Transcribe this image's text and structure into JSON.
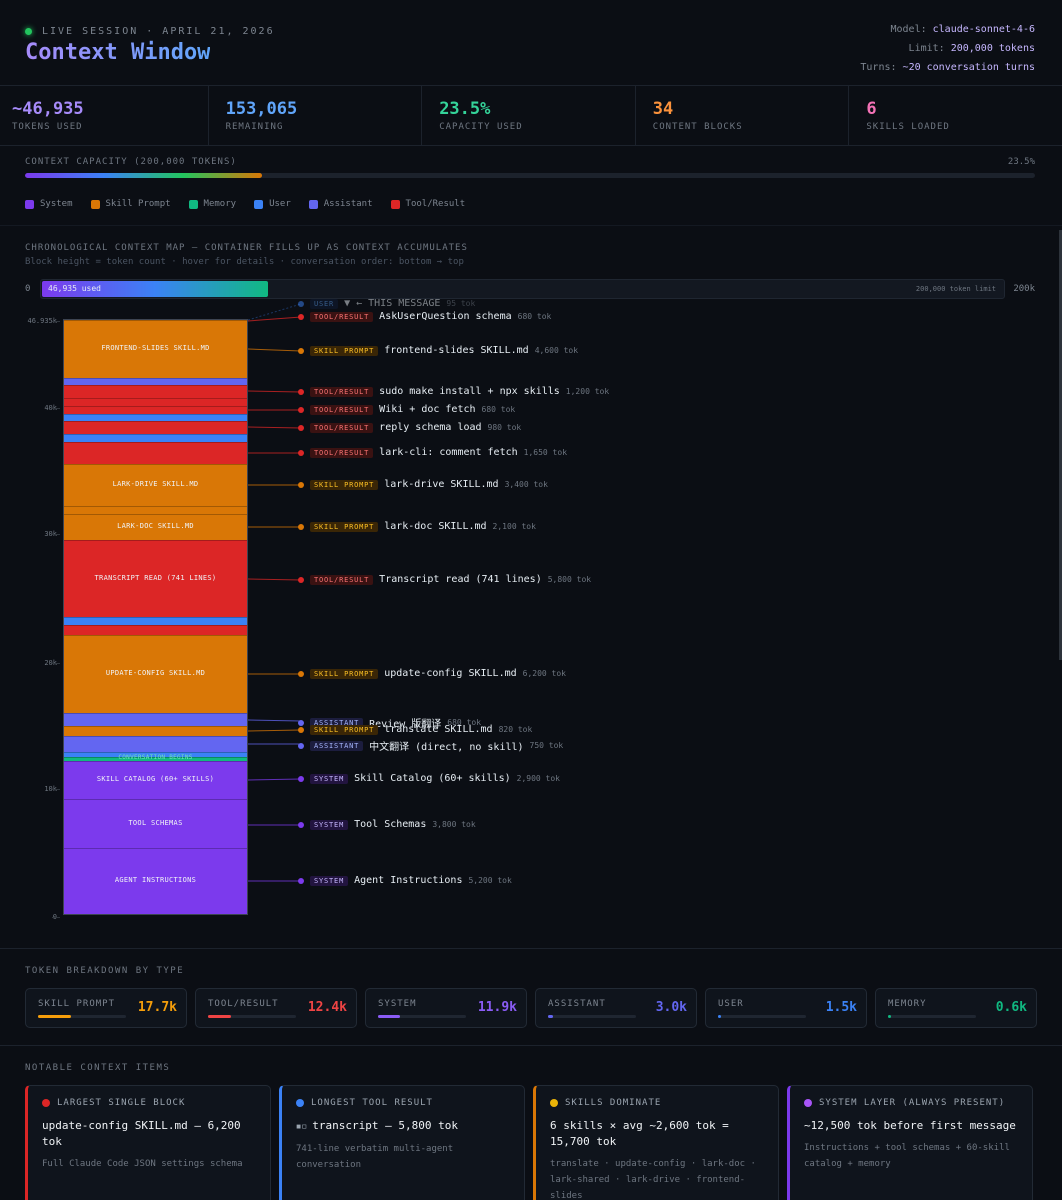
{
  "header": {
    "session": "LIVE SESSION · APRIL 21, 2026",
    "title": "Context Window",
    "model_label": "Model:",
    "model_value": "claude-sonnet-4-6",
    "limit_label": "Limit:",
    "limit_value": "200,000 tokens",
    "turns_label": "Turns:",
    "turns_value": "~20 conversation turns"
  },
  "stats": [
    {
      "value": "~46,935",
      "label": "TOKENS USED",
      "color": "#a78bfa"
    },
    {
      "value": "153,065",
      "label": "REMAINING",
      "color": "#60a5fa"
    },
    {
      "value": "23.5%",
      "label": "CAPACITY USED",
      "color": "#34d399"
    },
    {
      "value": "34",
      "label": "CONTENT BLOCKS",
      "color": "#fb923c"
    },
    {
      "value": "6",
      "label": "SKILLS LOADED",
      "color": "#f472b6"
    }
  ],
  "capacity": {
    "label": "CONTEXT CAPACITY (200,000 TOKENS)",
    "percent_text": "23.5%",
    "fraction": 0.235
  },
  "legend": [
    {
      "name": "System",
      "color": "#7c3aed"
    },
    {
      "name": "Skill Prompt",
      "color": "#d97706"
    },
    {
      "name": "Memory",
      "color": "#10b981"
    },
    {
      "name": "User",
      "color": "#3b82f6"
    },
    {
      "name": "Assistant",
      "color": "#6366f1"
    },
    {
      "name": "Tool/Result",
      "color": "#dc2626"
    }
  ],
  "map": {
    "title": "CHRONOLOGICAL CONTEXT MAP — CONTAINER FILLS UP AS CONTEXT ACCUMULATES",
    "subtitle": "Block height = token count · hover for details · conversation order: bottom → top",
    "bar_start": "0",
    "bar_used": "46,935 used",
    "bar_limit": "200,000 token limit",
    "bar_end": "200k",
    "used_fraction": 0.235,
    "axis": [
      "46.935k",
      "40k",
      "30k",
      "20k",
      "10k",
      "0"
    ],
    "conversation_begins": "CONVERSATION BEGINS",
    "block_labels": {
      "frontend": "FRONTEND-SLIDES SKILL.MD",
      "larkdrive": "LARK-DRIVE SKILL.MD",
      "larkdoc": "LARK-DOC SKILL.MD",
      "transcript": "TRANSCRIPT READ (741 LINES)",
      "updateconfig": "UPDATE-CONFIG SKILL.MD",
      "catalog": "SKILL CATALOG (60+ SKILLS)",
      "schemas": "TOOL SCHEMAS",
      "agent": "AGENT INSTRUCTIONS"
    },
    "rows": [
      {
        "badge": "USER",
        "name": "▼ ← THIS MESSAGE",
        "tok": "95 tok",
        "type": "user",
        "dim": true
      },
      {
        "badge": "TOOL/RESULT",
        "name": "AskUserQuestion schema",
        "tok": "680 tok",
        "type": "tool"
      },
      {
        "badge": "SKILL PROMPT",
        "name": "frontend-slides SKILL.md",
        "tok": "4,600 tok",
        "type": "skill"
      },
      {
        "badge": "TOOL/RESULT",
        "name": "sudo make install + npx skills",
        "tok": "1,200 tok",
        "type": "tool"
      },
      {
        "badge": "TOOL/RESULT",
        "name": "Wiki + doc fetch",
        "tok": "680 tok",
        "type": "tool"
      },
      {
        "badge": "TOOL/RESULT",
        "name": "reply schema load",
        "tok": "980 tok",
        "type": "tool"
      },
      {
        "badge": "TOOL/RESULT",
        "name": "lark-cli: comment fetch",
        "tok": "1,650 tok",
        "type": "tool"
      },
      {
        "badge": "SKILL PROMPT",
        "name": "lark-drive SKILL.md",
        "tok": "3,400 tok",
        "type": "skill"
      },
      {
        "badge": "SKILL PROMPT",
        "name": "lark-doc SKILL.md",
        "tok": "2,100 tok",
        "type": "skill"
      },
      {
        "badge": "TOOL/RESULT",
        "name": "Transcript read (741 lines)",
        "tok": "5,800 tok",
        "type": "tool"
      },
      {
        "badge": "SKILL PROMPT",
        "name": "update-config SKILL.md",
        "tok": "6,200 tok",
        "type": "skill"
      },
      {
        "badge": "ASSISTANT",
        "name": "Review 版翻译",
        "tok": "680 tok",
        "type": "assistant"
      },
      {
        "badge": "SKILL PROMPT",
        "name": "translate SKILL.md",
        "tok": "820 tok",
        "type": "skill"
      },
      {
        "badge": "ASSISTANT",
        "name": "中文翻译 (direct, no skill)",
        "tok": "750 tok",
        "type": "assistant"
      },
      {
        "badge": "SYSTEM",
        "name": "Skill Catalog (60+ skills)",
        "tok": "2,900 tok",
        "type": "system"
      },
      {
        "badge": "SYSTEM",
        "name": "Tool Schemas",
        "tok": "3,800 tok",
        "type": "system"
      },
      {
        "badge": "SYSTEM",
        "name": "Agent Instructions",
        "tok": "5,200 tok",
        "type": "system"
      }
    ]
  },
  "breakdown": {
    "title": "TOKEN BREAKDOWN BY TYPE",
    "items": [
      {
        "label": "SKILL PROMPT",
        "value": "17.7k",
        "color": "#f59e0b",
        "fraction": 0.38
      },
      {
        "label": "TOOL/RESULT",
        "value": "12.4k",
        "color": "#ef4444",
        "fraction": 0.26
      },
      {
        "label": "SYSTEM",
        "value": "11.9k",
        "color": "#8b5cf6",
        "fraction": 0.25
      },
      {
        "label": "ASSISTANT",
        "value": "3.0k",
        "color": "#6366f1",
        "fraction": 0.06
      },
      {
        "label": "USER",
        "value": "1.5k",
        "color": "#3b82f6",
        "fraction": 0.03
      },
      {
        "label": "MEMORY",
        "value": "0.6k",
        "color": "#10b981",
        "fraction": 0.015
      }
    ]
  },
  "notable": {
    "title": "NOTABLE CONTEXT ITEMS",
    "items": [
      {
        "head": "LARGEST SINGLE BLOCK",
        "title": "update-config SKILL.md — 6,200 tok",
        "desc": "Full Claude Code JSON settings schema",
        "color": "#dc2626",
        "dot": "#dc2626"
      },
      {
        "head": "LONGEST TOOL RESULT",
        "title": "transcript — 5,800 tok",
        "desc": "741-line verbatim multi-agent conversation",
        "color": "#3b82f6",
        "dot": "#3b82f6",
        "prefix": "◾◽"
      },
      {
        "head": "SKILLS DOMINATE",
        "title": "6 skills × avg ~2,600 tok = 15,700 tok",
        "desc": "translate · update-config · lark-doc · lark-shared · lark-drive · frontend-slides",
        "color": "#d97706",
        "dot": "#eab308"
      },
      {
        "head": "SYSTEM LAYER (ALWAYS PRESENT)",
        "title": "~12,500 tok before first message",
        "desc": "Instructions + tool schemas + 60-skill catalog + memory",
        "color": "#7c3aed",
        "dot": "#a855f7"
      }
    ]
  }
}
